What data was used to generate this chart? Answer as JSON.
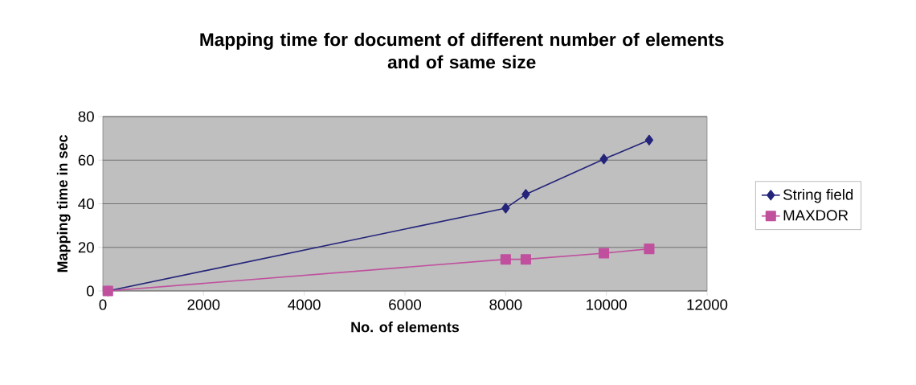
{
  "chart_data": {
    "type": "line",
    "title": "Mapping time for document of different number of elements\nand of same size",
    "xlabel": "No. of elements",
    "ylabel": "Mapping time in sec",
    "x": [
      100,
      8000,
      8400,
      9950,
      10850
    ],
    "series": [
      {
        "name": "String field",
        "color": "#24247a",
        "marker": "diamond",
        "values": [
          0,
          38,
          44.3,
          60.5,
          69.2
        ]
      },
      {
        "name": "MAXDOR",
        "color": "#c0509e",
        "marker": "square",
        "values": [
          0,
          14.5,
          14.5,
          17.3,
          19.3
        ]
      }
    ],
    "xlim": [
      0,
      12000
    ],
    "xticks": [
      0,
      2000,
      4000,
      6000,
      8000,
      10000,
      12000
    ],
    "ylim": [
      0,
      80
    ],
    "yticks": [
      0,
      20,
      40,
      60,
      80
    ],
    "grid": "y",
    "legend": "right"
  }
}
